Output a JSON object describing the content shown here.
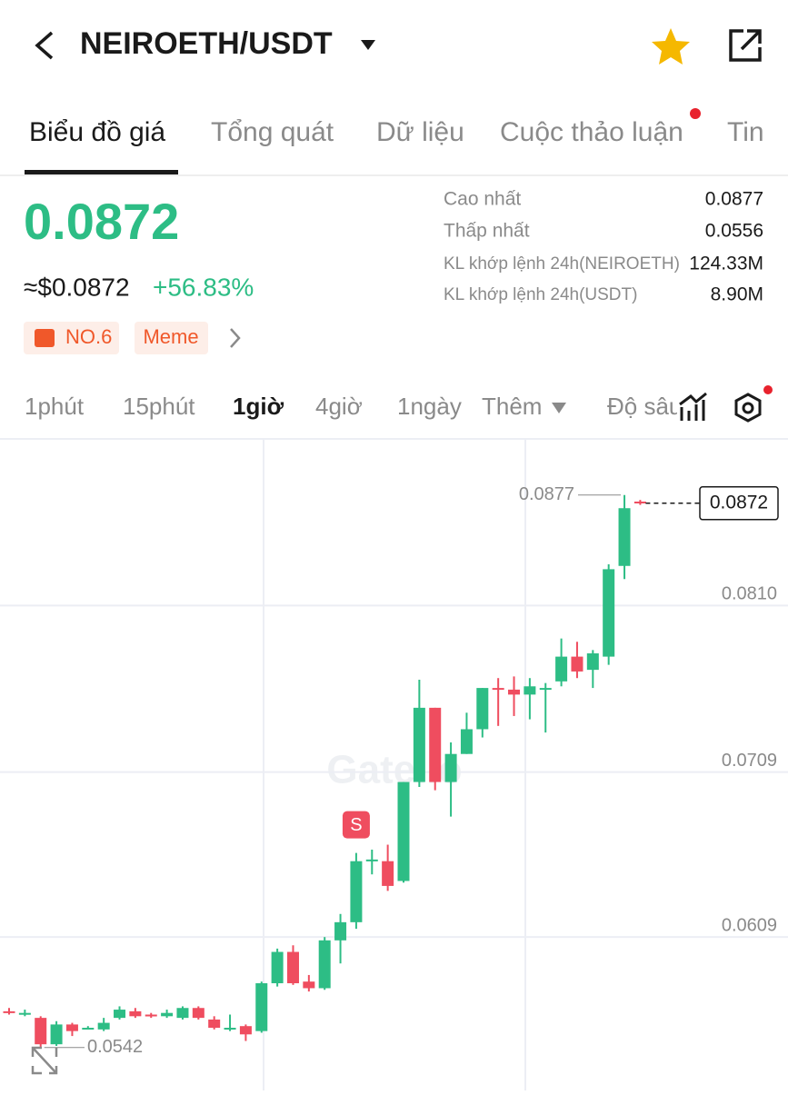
{
  "header": {
    "title": "NEIROETH/USDT"
  },
  "tabs": [
    "Biểu đồ giá",
    "Tổng quát",
    "Dữ liệu",
    "Cuộc thảo luận",
    "Tin"
  ],
  "price": {
    "last": "0.0872",
    "usd": "≈$0.0872",
    "change": "+56.83%",
    "badges": [
      "NO.6",
      "Meme"
    ]
  },
  "stats": [
    [
      "Cao nhất",
      "0.0877"
    ],
    [
      "Thấp nhất",
      "0.0556"
    ],
    [
      "KL khớp lệnh 24h(NEIROETH)",
      "124.33M"
    ],
    [
      "KL khớp lệnh 24h(USDT)",
      "8.90M"
    ]
  ],
  "intervals": [
    "1phút",
    "15phút",
    "1giờ",
    "4giờ",
    "1ngày",
    "Thêm",
    "Độ sâu"
  ],
  "chart_data": {
    "type": "candlestick",
    "watermark": "Gate.io",
    "up_color": "#2dbd85",
    "down_color": "#ef4d5f",
    "open": [
      0.0564,
      0.0562,
      0.056,
      0.0544,
      0.0556,
      0.0553,
      0.0553,
      0.056,
      0.0564,
      0.0562,
      0.0561,
      0.056,
      0.0566,
      0.0559,
      0.0553,
      0.0555,
      0.0552,
      0.0581,
      0.06,
      0.0582,
      0.0578,
      0.0607,
      0.0618,
      0.0655,
      0.0655,
      0.0643,
      0.0703,
      0.0748,
      0.0703,
      0.072,
      0.0735,
      0.076,
      0.0759,
      0.0756,
      0.0759,
      0.0764,
      0.0779,
      0.0771,
      0.0779,
      0.0834,
      0.0873
    ],
    "high": [
      0.0566,
      0.0565,
      0.0561,
      0.0558,
      0.0557,
      0.0555,
      0.056,
      0.0567,
      0.0566,
      0.0563,
      0.0565,
      0.0567,
      0.0567,
      0.0561,
      0.0562,
      0.0556,
      0.0582,
      0.0602,
      0.0604,
      0.0586,
      0.0609,
      0.0623,
      0.066,
      0.0662,
      0.0665,
      0.0703,
      0.0765,
      0.0748,
      0.0727,
      0.0745,
      0.076,
      0.0766,
      0.0767,
      0.0766,
      0.0763,
      0.079,
      0.0788,
      0.0783,
      0.0835,
      0.0877,
      0.0874
    ],
    "low": [
      0.0562,
      0.0561,
      0.0542,
      0.0543,
      0.0549,
      0.0553,
      0.0552,
      0.0559,
      0.056,
      0.056,
      0.056,
      0.0559,
      0.0559,
      0.0553,
      0.0552,
      0.0546,
      0.0551,
      0.0579,
      0.058,
      0.0576,
      0.0577,
      0.0593,
      0.0614,
      0.0647,
      0.0637,
      0.0642,
      0.07,
      0.0698,
      0.0682,
      0.072,
      0.073,
      0.0737,
      0.0743,
      0.0741,
      0.0733,
      0.0761,
      0.0766,
      0.076,
      0.0774,
      0.0826,
      0.0871
    ],
    "close": [
      0.0563,
      0.0563,
      0.0544,
      0.0556,
      0.0552,
      0.0554,
      0.0557,
      0.0565,
      0.0561,
      0.0561,
      0.0563,
      0.0566,
      0.056,
      0.0554,
      0.0554,
      0.055,
      0.0581,
      0.06,
      0.0581,
      0.0578,
      0.0607,
      0.0618,
      0.0655,
      0.0656,
      0.064,
      0.0703,
      0.0748,
      0.0703,
      0.072,
      0.0735,
      0.076,
      0.0759,
      0.0756,
      0.0761,
      0.076,
      0.0779,
      0.077,
      0.0781,
      0.0832,
      0.0869,
      0.0872
    ],
    "ylim": [
      0.0516,
      0.0911
    ],
    "yticks": [
      {
        "value": 0.081,
        "label": "0.0810"
      },
      0.0709,
      0.0609
    ],
    "max_label": "0.0877",
    "min_label": "0.0542",
    "last_label": "0.0872",
    "signal": "S"
  }
}
